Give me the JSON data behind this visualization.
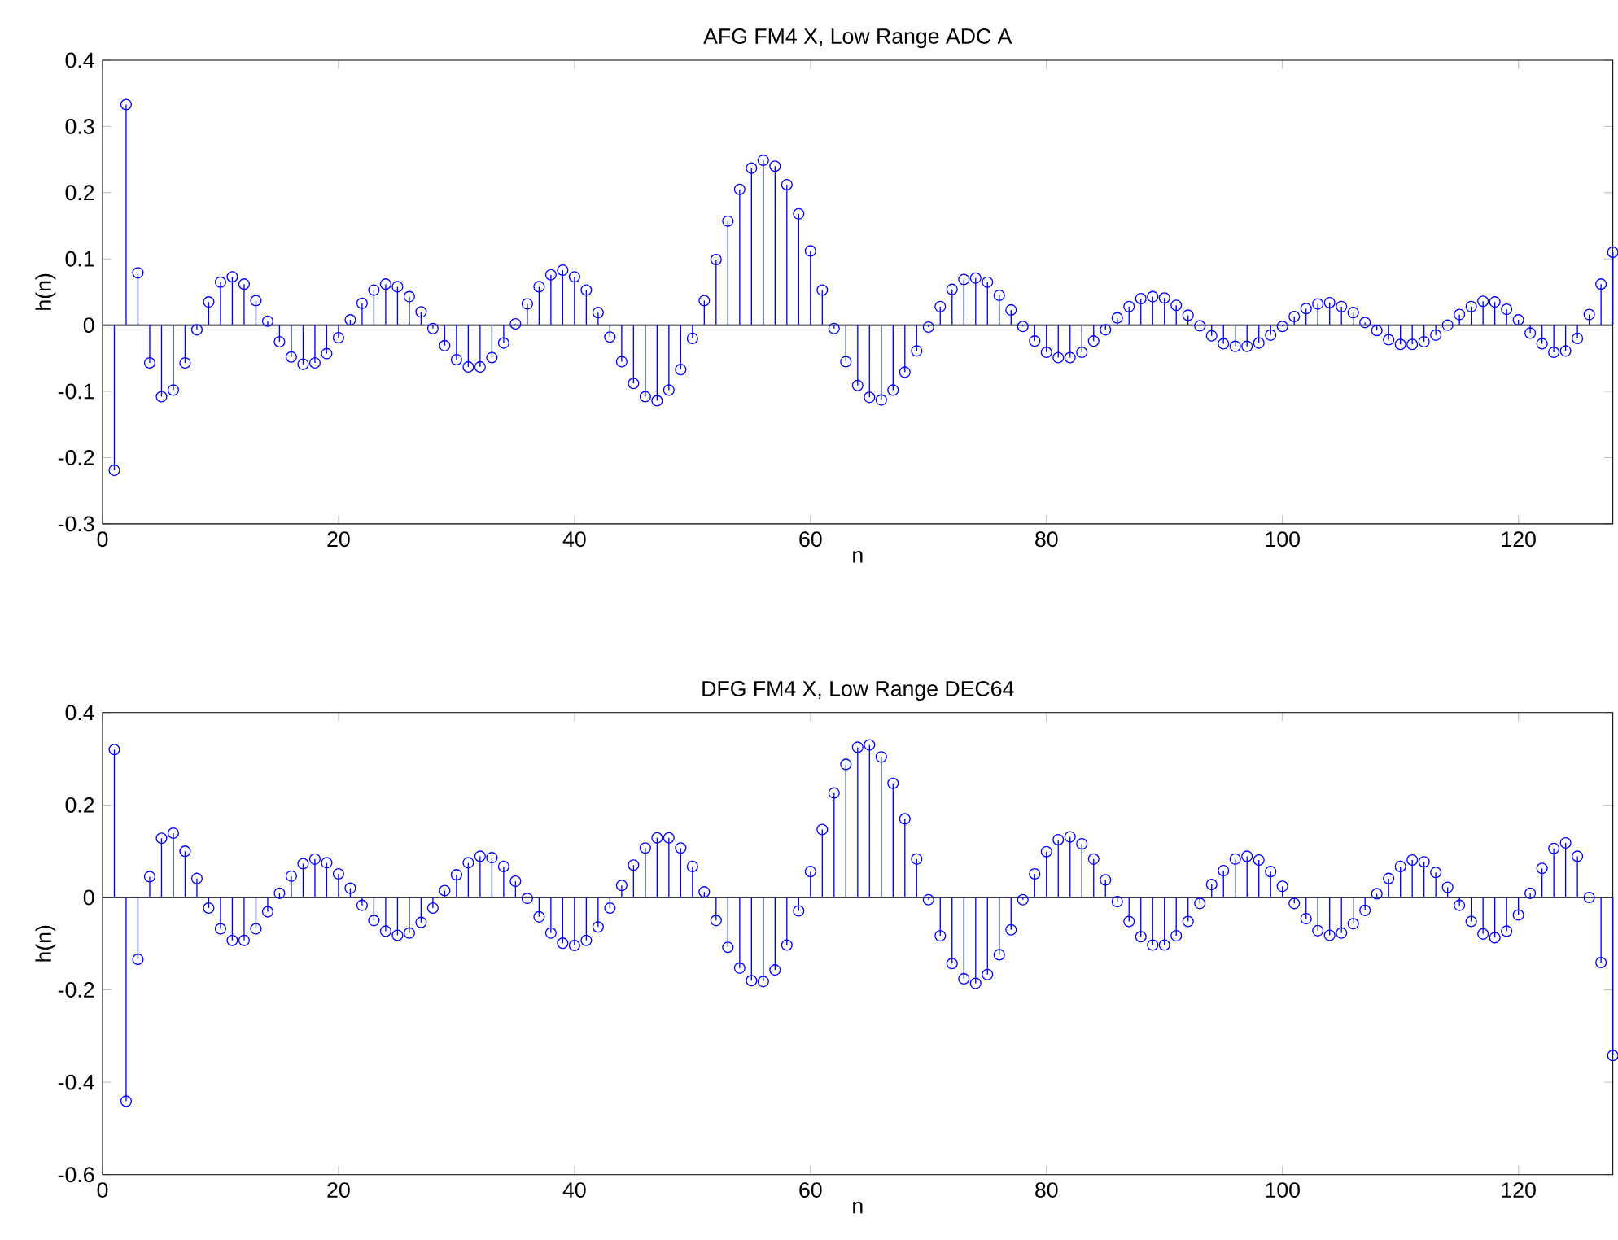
{
  "chart_data": [
    {
      "type": "lollipop",
      "title": "AFG FM4 X, Low Range ADC A",
      "xlabel": "n",
      "ylabel": "h(n)",
      "color": "#0000ff",
      "marker": "circle",
      "xlim": [
        0,
        128
      ],
      "ylim": [
        -0.3,
        0.4
      ],
      "xticks": [
        0,
        20,
        40,
        60,
        80,
        100,
        120
      ],
      "yticks": [
        -0.3,
        -0.2,
        -0.1,
        0,
        0.1,
        0.2,
        0.3,
        0.4
      ],
      "x": [
        1,
        2,
        3,
        4,
        5,
        6,
        7,
        8,
        9,
        10,
        11,
        12,
        13,
        14,
        15,
        16,
        17,
        18,
        19,
        20,
        21,
        22,
        23,
        24,
        25,
        26,
        27,
        28,
        29,
        30,
        31,
        32,
        33,
        34,
        35,
        36,
        37,
        38,
        39,
        40,
        41,
        42,
        43,
        44,
        45,
        46,
        47,
        48,
        49,
        50,
        51,
        52,
        53,
        54,
        55,
        56,
        57,
        58,
        59,
        60,
        61,
        62,
        63,
        64,
        65,
        66,
        67,
        68,
        69,
        70,
        71,
        72,
        73,
        74,
        75,
        76,
        77,
        78,
        79,
        80,
        81,
        82,
        83,
        84,
        85,
        86,
        87,
        88,
        89,
        90,
        91,
        92,
        93,
        94,
        95,
        96,
        97,
        98,
        99,
        100,
        101,
        102,
        103,
        104,
        105,
        106,
        107,
        108,
        109,
        110,
        111,
        112,
        113,
        114,
        115,
        116,
        117,
        118,
        119,
        120,
        121,
        122,
        123,
        124,
        125,
        126,
        127,
        128
      ],
      "values": [
        -0.219,
        0.333,
        0.079,
        -0.057,
        -0.108,
        -0.098,
        -0.057,
        -0.007,
        0.035,
        0.065,
        0.073,
        0.062,
        0.037,
        0.006,
        -0.025,
        -0.048,
        -0.059,
        -0.057,
        -0.043,
        -0.019,
        0.008,
        0.033,
        0.053,
        0.062,
        0.058,
        0.043,
        0.02,
        -0.005,
        -0.031,
        -0.052,
        -0.063,
        -0.063,
        -0.049,
        -0.027,
        0.002,
        0.032,
        0.058,
        0.076,
        0.083,
        0.073,
        0.053,
        0.019,
        -0.018,
        -0.055,
        -0.088,
        -0.108,
        -0.114,
        -0.098,
        -0.067,
        -0.02,
        0.037,
        0.099,
        0.157,
        0.205,
        0.237,
        0.249,
        0.24,
        0.212,
        0.168,
        0.112,
        0.053,
        -0.005,
        -0.055,
        -0.091,
        -0.109,
        -0.113,
        -0.098,
        -0.071,
        -0.039,
        -0.003,
        0.028,
        0.054,
        0.069,
        0.071,
        0.065,
        0.045,
        0.023,
        -0.002,
        -0.024,
        -0.041,
        -0.049,
        -0.049,
        -0.041,
        -0.024,
        -0.007,
        0.011,
        0.028,
        0.04,
        0.043,
        0.041,
        0.03,
        0.015,
        -0.001,
        -0.016,
        -0.028,
        -0.032,
        -0.032,
        -0.027,
        -0.015,
        -0.002,
        0.013,
        0.025,
        0.032,
        0.034,
        0.028,
        0.019,
        0.004,
        -0.008,
        -0.022,
        -0.029,
        -0.029,
        -0.025,
        -0.015,
        0,
        0.016,
        0.028,
        0.036,
        0.035,
        0.024,
        0.008,
        -0.012,
        -0.028,
        -0.041,
        -0.039,
        -0.02,
        0.016,
        0.062,
        0.11
      ]
    },
    {
      "type": "lollipop",
      "title": "DFG FM4 X, Low Range DEC64",
      "xlabel": "n",
      "ylabel": "h(n)",
      "color": "#0000ff",
      "marker": "circle",
      "xlim": [
        0,
        128
      ],
      "ylim": [
        -0.6,
        0.4
      ],
      "xticks": [
        0,
        20,
        40,
        60,
        80,
        100,
        120
      ],
      "yticks": [
        -0.6,
        -0.4,
        -0.2,
        0,
        0.2,
        0.4
      ],
      "x": [
        1,
        2,
        3,
        4,
        5,
        6,
        7,
        8,
        9,
        10,
        11,
        12,
        13,
        14,
        15,
        16,
        17,
        18,
        19,
        20,
        21,
        22,
        23,
        24,
        25,
        26,
        27,
        28,
        29,
        30,
        31,
        32,
        33,
        34,
        35,
        36,
        37,
        38,
        39,
        40,
        41,
        42,
        43,
        44,
        45,
        46,
        47,
        48,
        49,
        50,
        51,
        52,
        53,
        54,
        55,
        56,
        57,
        58,
        59,
        60,
        61,
        62,
        63,
        64,
        65,
        66,
        67,
        68,
        69,
        70,
        71,
        72,
        73,
        74,
        75,
        76,
        77,
        78,
        79,
        80,
        81,
        82,
        83,
        84,
        85,
        86,
        87,
        88,
        89,
        90,
        91,
        92,
        93,
        94,
        95,
        96,
        97,
        98,
        99,
        100,
        101,
        102,
        103,
        104,
        105,
        106,
        107,
        108,
        109,
        110,
        111,
        112,
        113,
        114,
        115,
        116,
        117,
        118,
        119,
        120,
        121,
        122,
        123,
        124,
        125,
        126,
        127,
        128
      ],
      "values": [
        0.32,
        -0.441,
        -0.134,
        0.045,
        0.128,
        0.139,
        0.1,
        0.041,
        -0.023,
        -0.068,
        -0.093,
        -0.093,
        -0.068,
        -0.031,
        0.009,
        0.046,
        0.073,
        0.083,
        0.075,
        0.051,
        0.02,
        -0.017,
        -0.05,
        -0.073,
        -0.082,
        -0.077,
        -0.054,
        -0.023,
        0.015,
        0.049,
        0.075,
        0.089,
        0.086,
        0.067,
        0.035,
        -0.002,
        -0.042,
        -0.077,
        -0.099,
        -0.104,
        -0.093,
        -0.064,
        -0.023,
        0.026,
        0.07,
        0.107,
        0.129,
        0.129,
        0.107,
        0.067,
        0.012,
        -0.05,
        -0.108,
        -0.153,
        -0.18,
        -0.182,
        -0.157,
        -0.103,
        -0.029,
        0.056,
        0.147,
        0.226,
        0.288,
        0.325,
        0.33,
        0.304,
        0.247,
        0.17,
        0.083,
        -0.005,
        -0.083,
        -0.143,
        -0.176,
        -0.186,
        -0.167,
        -0.124,
        -0.07,
        -0.005,
        0.051,
        0.099,
        0.125,
        0.131,
        0.116,
        0.083,
        0.038,
        -0.009,
        -0.052,
        -0.085,
        -0.103,
        -0.103,
        -0.083,
        -0.052,
        -0.013,
        0.028,
        0.058,
        0.083,
        0.089,
        0.081,
        0.056,
        0.024,
        -0.013,
        -0.046,
        -0.072,
        -0.082,
        -0.077,
        -0.057,
        -0.028,
        0.008,
        0.041,
        0.067,
        0.081,
        0.077,
        0.054,
        0.022,
        -0.017,
        -0.052,
        -0.079,
        -0.087,
        -0.073,
        -0.038,
        0.009,
        0.063,
        0.106,
        0.118,
        0.089,
        0.0,
        -0.141,
        -0.342
      ]
    }
  ]
}
